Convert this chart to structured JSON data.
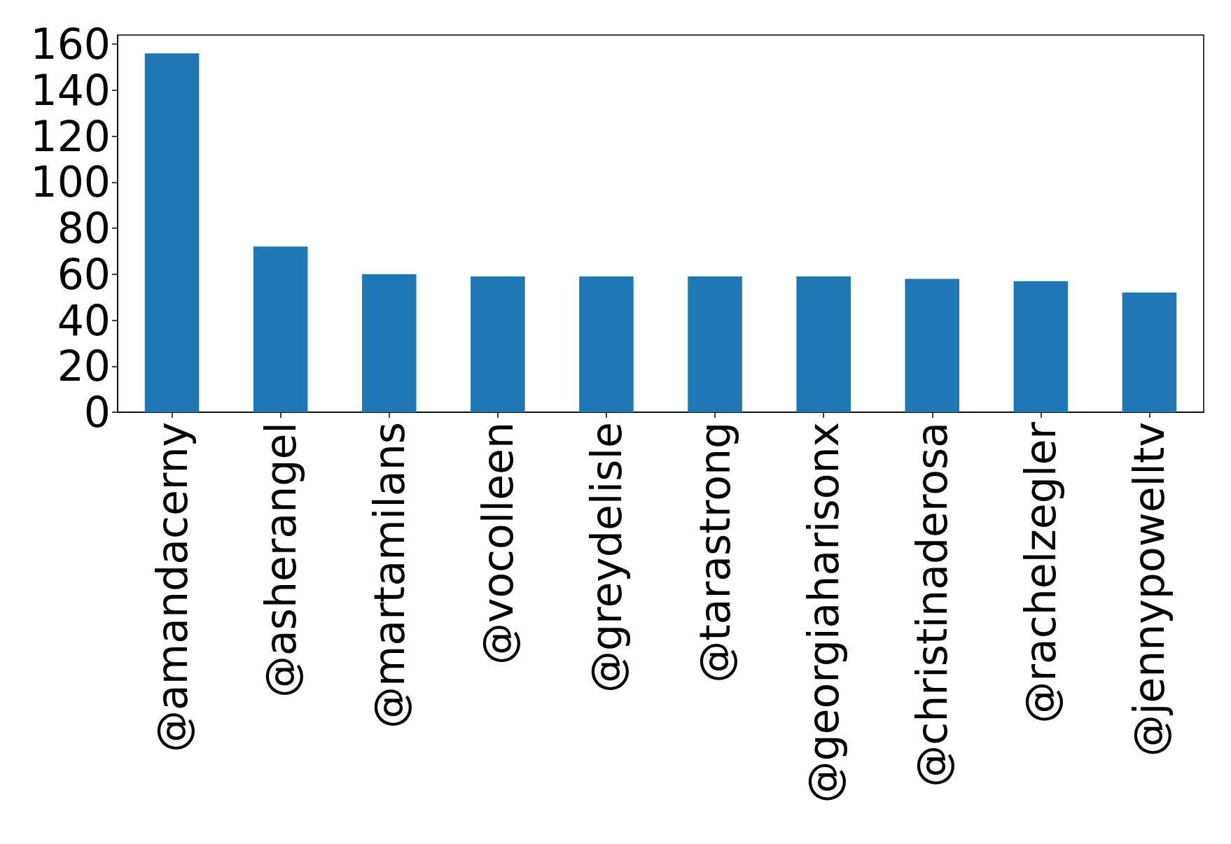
{
  "chart_data": {
    "type": "bar",
    "categories": [
      "@amandacerny",
      "@asherangel",
      "@martamilans",
      "@vocolleen",
      "@greydelisle",
      "@tarastrong",
      "@georgiaharisonx",
      "@christinaderosa",
      "@rachelzegler",
      "@jennypowelltv"
    ],
    "values": [
      156,
      72,
      60,
      59,
      59,
      59,
      59,
      58,
      57,
      52
    ],
    "color": "#1f77b4",
    "ylim": [
      0,
      164
    ],
    "yticks": [
      0,
      20,
      40,
      60,
      80,
      100,
      120,
      140,
      160
    ],
    "grid": false
  }
}
